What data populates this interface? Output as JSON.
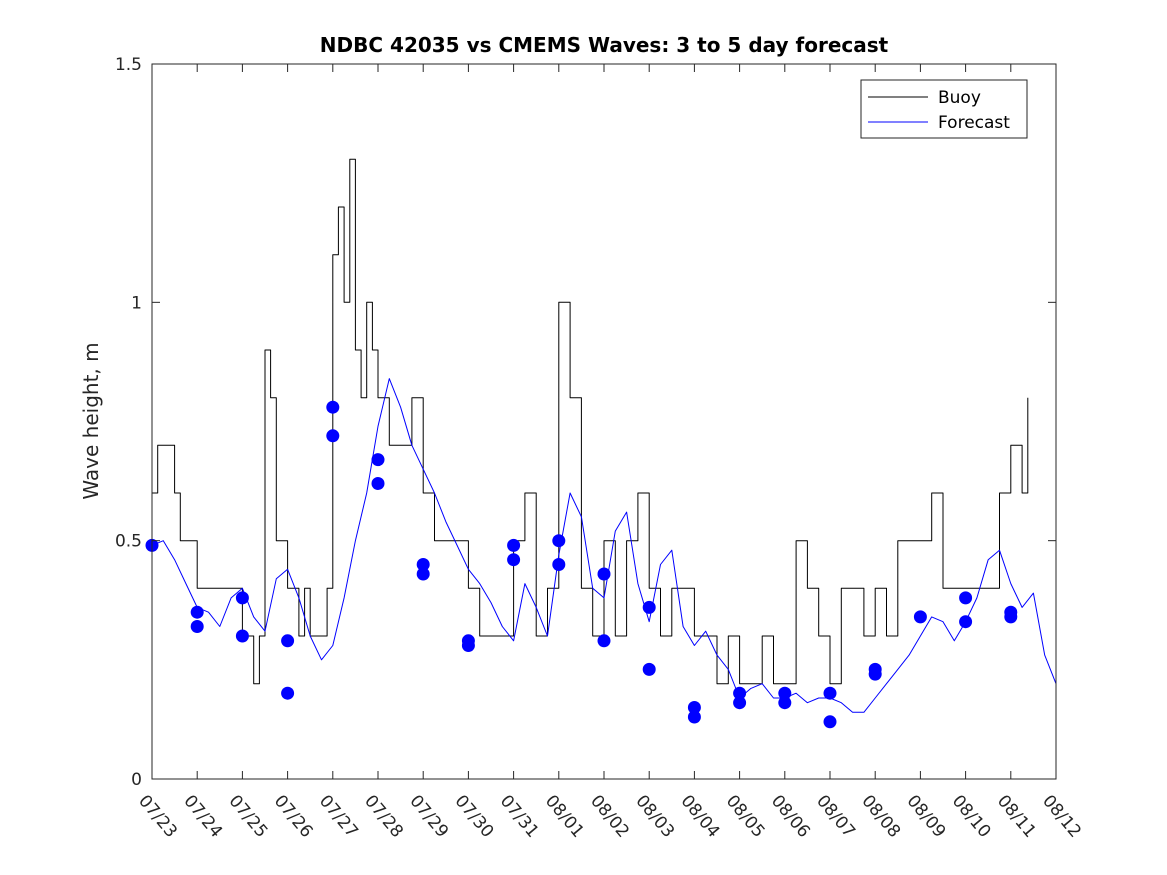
{
  "chart_data": {
    "type": "line",
    "title": "NDBC 42035 vs CMEMS Waves: 3 to 5 day forecast",
    "xlabel": "",
    "ylabel": "Wave height, m",
    "ylim": [
      0,
      1.5
    ],
    "yticks": [
      "0",
      "0.5",
      "1",
      "1.5"
    ],
    "ytick_values": [
      0,
      0.5,
      1,
      1.5
    ],
    "xlim": [
      "07/23",
      "08/12"
    ],
    "xticks": [
      "07/23",
      "07/24",
      "07/25",
      "07/26",
      "07/27",
      "07/28",
      "07/29",
      "07/30",
      "07/31",
      "08/01",
      "08/02",
      "08/03",
      "08/04",
      "08/05",
      "08/06",
      "08/07",
      "08/08",
      "08/09",
      "08/10",
      "08/11",
      "08/12"
    ],
    "grid": false,
    "legend": {
      "position": "top-right",
      "entries": [
        {
          "label": "Buoy",
          "color": "#000000"
        },
        {
          "label": "Forecast",
          "color": "#0000ff"
        }
      ]
    },
    "colors": {
      "buoy": "#000000",
      "forecast": "#0000ff",
      "marker": "#0000ff"
    },
    "series": [
      {
        "name": "Buoy",
        "x": [
          "07/23 00:00",
          "07/23 03:00",
          "07/23 06:00",
          "07/23 09:00",
          "07/23 12:00",
          "07/23 15:00",
          "07/23 18:00",
          "07/24 00:00",
          "07/24 06:00",
          "07/24 12:00",
          "07/24 18:00",
          "07/25 00:00",
          "07/25 06:00",
          "07/25 09:00",
          "07/25 12:00",
          "07/25 15:00",
          "07/25 18:00",
          "07/26 00:00",
          "07/26 06:00",
          "07/26 09:00",
          "07/26 12:00",
          "07/26 15:00",
          "07/26 18:00",
          "07/26 21:00",
          "07/27 00:00",
          "07/27 03:00",
          "07/27 06:00",
          "07/27 09:00",
          "07/27 12:00",
          "07/27 15:00",
          "07/27 18:00",
          "07/27 21:00",
          "07/28 00:00",
          "07/28 06:00",
          "07/28 12:00",
          "07/28 18:00",
          "07/29 00:00",
          "07/29 06:00",
          "07/29 12:00",
          "07/29 18:00",
          "07/30 00:00",
          "07/30 06:00",
          "07/30 12:00",
          "07/30 18:00",
          "07/31 00:00",
          "07/31 03:00",
          "07/31 06:00",
          "07/31 12:00",
          "07/31 18:00",
          "08/01 00:00",
          "08/01 06:00",
          "08/01 12:00",
          "08/01 18:00",
          "08/02 00:00",
          "08/02 06:00",
          "08/02 12:00",
          "08/02 18:00",
          "08/03 00:00",
          "08/03 06:00",
          "08/03 12:00",
          "08/03 18:00",
          "08/04 00:00",
          "08/04 06:00",
          "08/04 12:00",
          "08/04 18:00",
          "08/05 00:00",
          "08/05 06:00",
          "08/05 12:00",
          "08/05 18:00",
          "08/06 00:00",
          "08/06 06:00",
          "08/06 12:00",
          "08/06 18:00",
          "08/07 00:00",
          "08/07 06:00",
          "08/07 12:00",
          "08/07 18:00",
          "08/08 00:00",
          "08/08 06:00",
          "08/08 12:00",
          "08/08 18:00",
          "08/09 00:00",
          "08/09 06:00",
          "08/09 12:00",
          "08/09 18:00",
          "08/10 00:00",
          "08/10 06:00",
          "08/10 12:00",
          "08/10 18:00",
          "08/11 00:00",
          "08/11 03:00",
          "08/11 06:00",
          "08/11 09:00"
        ],
        "y": [
          0.6,
          0.7,
          0.7,
          0.7,
          0.6,
          0.5,
          0.5,
          0.4,
          0.4,
          0.4,
          0.4,
          0.3,
          0.2,
          0.3,
          0.9,
          0.8,
          0.5,
          0.4,
          0.3,
          0.4,
          0.3,
          0.3,
          0.3,
          0.4,
          1.1,
          1.2,
          1.0,
          1.3,
          0.9,
          0.8,
          1.0,
          0.9,
          0.8,
          0.7,
          0.7,
          0.8,
          0.6,
          0.5,
          0.5,
          0.5,
          0.4,
          0.3,
          0.3,
          0.3,
          0.5,
          0.5,
          0.6,
          0.3,
          0.4,
          1.0,
          0.8,
          0.4,
          0.3,
          0.5,
          0.3,
          0.5,
          0.6,
          0.4,
          0.3,
          0.4,
          0.4,
          0.3,
          0.3,
          0.2,
          0.3,
          0.2,
          0.2,
          0.3,
          0.2,
          0.2,
          0.5,
          0.4,
          0.3,
          0.2,
          0.4,
          0.4,
          0.3,
          0.4,
          0.3,
          0.5,
          0.5,
          0.5,
          0.6,
          0.4,
          0.4,
          0.4,
          0.4,
          0.4,
          0.6,
          0.7,
          0.7,
          0.6,
          0.8
        ]
      },
      {
        "name": "Forecast",
        "x": [
          "07/23 00:00",
          "07/23 06:00",
          "07/23 12:00",
          "07/23 18:00",
          "07/24 00:00",
          "07/24 06:00",
          "07/24 12:00",
          "07/24 18:00",
          "07/25 00:00",
          "07/25 06:00",
          "07/25 12:00",
          "07/25 18:00",
          "07/26 00:00",
          "07/26 06:00",
          "07/26 12:00",
          "07/26 18:00",
          "07/27 00:00",
          "07/27 06:00",
          "07/27 12:00",
          "07/27 18:00",
          "07/28 00:00",
          "07/28 06:00",
          "07/28 12:00",
          "07/28 18:00",
          "07/29 00:00",
          "07/29 06:00",
          "07/29 12:00",
          "07/29 18:00",
          "07/30 00:00",
          "07/30 06:00",
          "07/30 12:00",
          "07/30 18:00",
          "07/31 00:00",
          "07/31 06:00",
          "07/31 12:00",
          "07/31 18:00",
          "08/01 00:00",
          "08/01 06:00",
          "08/01 12:00",
          "08/01 18:00",
          "08/02 00:00",
          "08/02 06:00",
          "08/02 12:00",
          "08/02 18:00",
          "08/03 00:00",
          "08/03 06:00",
          "08/03 12:00",
          "08/03 18:00",
          "08/04 00:00",
          "08/04 06:00",
          "08/04 12:00",
          "08/04 18:00",
          "08/05 00:00",
          "08/05 06:00",
          "08/05 12:00",
          "08/05 18:00",
          "08/06 00:00",
          "08/06 06:00",
          "08/06 12:00",
          "08/06 18:00",
          "08/07 00:00",
          "08/07 06:00",
          "08/07 12:00",
          "08/07 18:00",
          "08/08 00:00",
          "08/08 06:00",
          "08/08 12:00",
          "08/08 18:00",
          "08/09 00:00",
          "08/09 06:00",
          "08/09 12:00",
          "08/09 18:00",
          "08/10 00:00",
          "08/10 06:00",
          "08/10 12:00",
          "08/10 18:00",
          "08/11 00:00",
          "08/11 06:00",
          "08/11 12:00",
          "08/11 18:00",
          "08/12 00:00"
        ],
        "y": [
          0.49,
          0.5,
          0.46,
          0.41,
          0.36,
          0.35,
          0.32,
          0.38,
          0.4,
          0.34,
          0.31,
          0.42,
          0.44,
          0.38,
          0.3,
          0.25,
          0.28,
          0.38,
          0.5,
          0.6,
          0.74,
          0.84,
          0.78,
          0.7,
          0.65,
          0.6,
          0.54,
          0.49,
          0.44,
          0.41,
          0.37,
          0.32,
          0.29,
          0.41,
          0.36,
          0.3,
          0.47,
          0.6,
          0.55,
          0.4,
          0.38,
          0.52,
          0.56,
          0.41,
          0.33,
          0.45,
          0.48,
          0.32,
          0.28,
          0.31,
          0.26,
          0.23,
          0.17,
          0.19,
          0.2,
          0.17,
          0.17,
          0.18,
          0.16,
          0.17,
          0.17,
          0.16,
          0.14,
          0.14,
          0.17,
          0.2,
          0.23,
          0.26,
          0.3,
          0.34,
          0.33,
          0.29,
          0.33,
          0.38,
          0.46,
          0.48,
          0.41,
          0.36,
          0.39,
          0.26,
          0.2
        ]
      }
    ],
    "markers": {
      "name": "Forecast",
      "x": [
        "07/23 00:00",
        "07/24 00:00",
        "07/24 00:00",
        "07/25 00:00",
        "07/25 00:00",
        "07/26 00:00",
        "07/26 00:00",
        "07/27 00:00",
        "07/27 00:00",
        "07/28 00:00",
        "07/28 00:00",
        "07/29 00:00",
        "07/29 00:00",
        "07/30 00:00",
        "07/30 00:00",
        "07/31 00:00",
        "07/31 00:00",
        "08/01 00:00",
        "08/01 00:00",
        "08/02 00:00",
        "08/02 00:00",
        "08/03 00:00",
        "08/03 00:00",
        "08/04 00:00",
        "08/04 00:00",
        "08/05 00:00",
        "08/05 00:00",
        "08/06 00:00",
        "08/06 00:00",
        "08/07 00:00",
        "08/07 00:00",
        "08/08 00:00",
        "08/08 00:00",
        "08/09 00:00",
        "08/10 00:00",
        "08/10 00:00",
        "08/11 00:00",
        "08/11 00:00"
      ],
      "y": [
        0.49,
        0.35,
        0.32,
        0.38,
        0.3,
        0.29,
        0.18,
        0.78,
        0.72,
        0.67,
        0.62,
        0.45,
        0.43,
        0.29,
        0.28,
        0.49,
        0.46,
        0.5,
        0.45,
        0.43,
        0.29,
        0.36,
        0.23,
        0.15,
        0.13,
        0.18,
        0.16,
        0.18,
        0.16,
        0.18,
        0.12,
        0.23,
        0.22,
        0.34,
        0.38,
        0.33,
        0.35,
        0.34
      ]
    }
  }
}
